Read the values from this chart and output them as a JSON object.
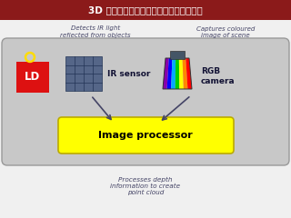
{
  "title": "3D 视觉产品中图像处理芯片具有重要地位",
  "title_bg": "#8b1a1a",
  "title_color": "#ffffff",
  "bg_color": "#f0f0f0",
  "panel_bg": "#c8c8c8",
  "ld_box_color": "#dd1111",
  "ld_text": "LD",
  "ld_circle_color": "#ffdd00",
  "ir_sensor_text": "IR sensor",
  "rgb_camera_text": "RGB\ncamera",
  "image_processor_text": "Image processor",
  "image_processor_bg": "#ffff00",
  "top_left_text": "Detects IR light\nreflected from objects",
  "top_right_text": "Captures coloured\nimage of scene",
  "bottom_text": "Processes depth\ninformation to create\npoint cloud",
  "text_color": "#444466",
  "arrow_color": "#444466",
  "cam_colors": [
    "#8800aa",
    "#0000ff",
    "#00aaff",
    "#00cc00",
    "#ffff00",
    "#ff8800",
    "#ff0000"
  ]
}
